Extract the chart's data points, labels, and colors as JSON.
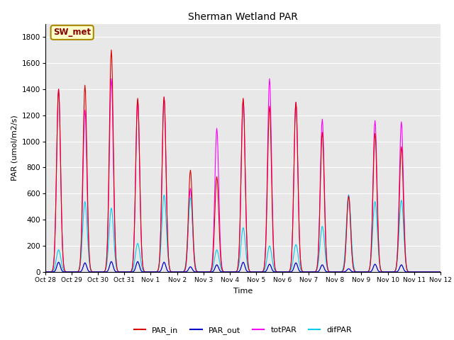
{
  "title": "Sherman Wetland PAR",
  "xlabel": "Time",
  "ylabel": "PAR (umol/m2/s)",
  "ylim": [
    0,
    1900
  ],
  "yticks": [
    0,
    200,
    400,
    600,
    800,
    1000,
    1200,
    1400,
    1600,
    1800
  ],
  "xtick_labels": [
    "Oct 28",
    "Oct 29",
    "Oct 30",
    "Oct 31",
    "Nov 1",
    "Nov 2",
    "Nov 3",
    "Nov 4",
    "Nov 5",
    "Nov 6",
    "Nov 7",
    "Nov 8",
    "Nov 9",
    "Nov 10",
    "Nov 11",
    "Nov 12"
  ],
  "annotation_text": "SW_met",
  "annotation_bg": "#ffffcc",
  "annotation_border": "#aa8800",
  "line_colors": {
    "PAR_in": "#dd0000",
    "PAR_out": "#0000cc",
    "totPAR": "#ff00ff",
    "difPAR": "#00ccee"
  },
  "bg_color": "#ffffff",
  "plot_bg": "#e8e8e8",
  "day_peaks": {
    "PAR_in": [
      1400,
      1430,
      1700,
      1330,
      1340,
      780,
      730,
      1330,
      1270,
      1300,
      1070,
      580,
      1060,
      960,
      0
    ],
    "PAR_out": [
      75,
      70,
      80,
      80,
      75,
      40,
      55,
      75,
      60,
      70,
      55,
      25,
      60,
      55,
      0
    ],
    "totPAR": [
      1400,
      1240,
      1480,
      1320,
      1340,
      640,
      1100,
      1320,
      1480,
      1300,
      1170,
      590,
      1160,
      1150,
      0
    ],
    "difPAR": [
      170,
      540,
      490,
      220,
      590,
      570,
      170,
      340,
      200,
      210,
      350,
      590,
      540,
      550,
      0
    ]
  },
  "n_days": 15,
  "pts_per_day": 48
}
